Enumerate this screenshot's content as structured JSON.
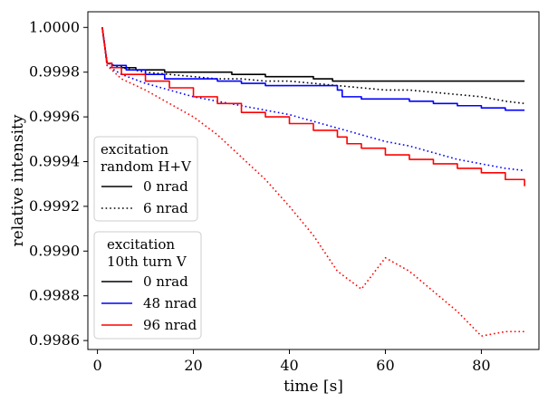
{
  "chart_data": {
    "type": "line",
    "xlabel": "time [s]",
    "ylabel": "relative intensity",
    "xlim": [
      -2,
      92
    ],
    "ylim": [
      0.99856,
      1.00007
    ],
    "xticks": [
      0,
      20,
      40,
      60,
      80
    ],
    "xtick_labels": [
      "0",
      "20",
      "40",
      "60",
      "80"
    ],
    "yticks": [
      0.9986,
      0.9988,
      0.999,
      0.9992,
      0.9994,
      0.9996,
      0.9998,
      1.0
    ],
    "ytick_labels": [
      "0.9986",
      "0.9988",
      "0.9990",
      "0.9992",
      "0.9994",
      "0.9996",
      "0.9998",
      "1.0000"
    ],
    "grid": false,
    "legends": [
      {
        "title_lines": [
          "excitation",
          "random H+V"
        ],
        "placement": "center-left",
        "entries": [
          {
            "label": "0 nrad",
            "color": "#000000",
            "dash": "dotted-none"
          },
          {
            "label": "6 nrad",
            "color": "#000000",
            "dash": "dotted"
          }
        ]
      },
      {
        "title_lines": [
          "excitation",
          "10th turn V"
        ],
        "placement": "lower-left",
        "entries": [
          {
            "label": "0 nrad",
            "color": "#000000",
            "dash": "solid"
          },
          {
            "label": "48 nrad",
            "color": "#0000ff",
            "dash": "solid"
          },
          {
            "label": "96 nrad",
            "color": "#ff0000",
            "dash": "solid"
          }
        ]
      }
    ],
    "series": [
      {
        "name": "10th turn V, 0 nrad",
        "color": "#000000",
        "dash": "solid",
        "step": true,
        "x": [
          1,
          2,
          3,
          5,
          8,
          14,
          20,
          25,
          28,
          35,
          42,
          45,
          49,
          55,
          65,
          75,
          89
        ],
        "y": [
          1.0,
          0.99984,
          0.99983,
          0.99982,
          0.99981,
          0.9998,
          0.9998,
          0.9998,
          0.99979,
          0.99978,
          0.99978,
          0.99977,
          0.99976,
          0.99976,
          0.99976,
          0.99976,
          0.99976
        ]
      },
      {
        "name": "random H+V, 6 nrad",
        "color": "#000000",
        "dash": "dotted",
        "step": false,
        "x": [
          1,
          2,
          5,
          10,
          15,
          20,
          25,
          30,
          35,
          40,
          45,
          50,
          55,
          60,
          65,
          70,
          75,
          80,
          85,
          89
        ],
        "y": [
          1.0,
          0.99984,
          0.99982,
          0.9998,
          0.99979,
          0.99978,
          0.99977,
          0.99977,
          0.99976,
          0.99976,
          0.99975,
          0.99974,
          0.99973,
          0.99972,
          0.99972,
          0.99971,
          0.9997,
          0.99969,
          0.99967,
          0.99966
        ]
      },
      {
        "name": "10th turn V, 48 nrad",
        "color": "#0000ff",
        "dash": "solid",
        "step": true,
        "x": [
          1,
          2,
          3,
          6,
          10,
          14,
          20,
          25,
          30,
          35,
          40,
          45,
          50,
          51,
          55,
          60,
          65,
          70,
          75,
          80,
          85,
          89
        ],
        "y": [
          1.0,
          0.99984,
          0.99983,
          0.99981,
          0.99979,
          0.99977,
          0.99977,
          0.99976,
          0.99975,
          0.99974,
          0.99974,
          0.99974,
          0.99972,
          0.99969,
          0.99968,
          0.99968,
          0.99967,
          0.99966,
          0.99965,
          0.99964,
          0.99963,
          0.99963
        ]
      },
      {
        "name": "random H+V, 0 nrad (blue dotted)",
        "color": "#0000ff",
        "dash": "dotted",
        "step": false,
        "x": [
          1,
          2,
          5,
          10,
          15,
          20,
          25,
          30,
          35,
          40,
          45,
          50,
          55,
          60,
          65,
          70,
          75,
          80,
          85,
          89
        ],
        "y": [
          1.0,
          0.99983,
          0.99979,
          0.99975,
          0.99972,
          0.99969,
          0.99967,
          0.99965,
          0.99963,
          0.99961,
          0.99958,
          0.99955,
          0.99952,
          0.99949,
          0.99947,
          0.99944,
          0.99941,
          0.99939,
          0.99937,
          0.99936
        ]
      },
      {
        "name": "10th turn V, 96 nrad",
        "color": "#ff0000",
        "dash": "solid",
        "step": true,
        "x": [
          1,
          2,
          3,
          5,
          10,
          15,
          20,
          25,
          30,
          35,
          40,
          45,
          50,
          52,
          55,
          60,
          65,
          70,
          75,
          80,
          85,
          89
        ],
        "y": [
          1.0,
          0.99984,
          0.99982,
          0.99979,
          0.99976,
          0.99973,
          0.99969,
          0.99966,
          0.99962,
          0.9996,
          0.99957,
          0.99954,
          0.99951,
          0.99948,
          0.99946,
          0.99943,
          0.99941,
          0.99939,
          0.99937,
          0.99935,
          0.99932,
          0.99929
        ]
      },
      {
        "name": "random H+V, 0 nrad (red dotted)",
        "color": "#ff0000",
        "dash": "dotted",
        "step": false,
        "x": [
          1,
          2,
          5,
          10,
          15,
          20,
          25,
          30,
          35,
          40,
          45,
          50,
          55,
          60,
          65,
          70,
          75,
          80,
          85,
          89
        ],
        "y": [
          1.0,
          0.99983,
          0.99977,
          0.99972,
          0.99966,
          0.9996,
          0.99952,
          0.99942,
          0.99932,
          0.9992,
          0.99907,
          0.99891,
          0.99883,
          0.99897,
          0.99891,
          0.99882,
          0.99873,
          0.99862,
          0.99864,
          0.99864
        ]
      }
    ]
  }
}
